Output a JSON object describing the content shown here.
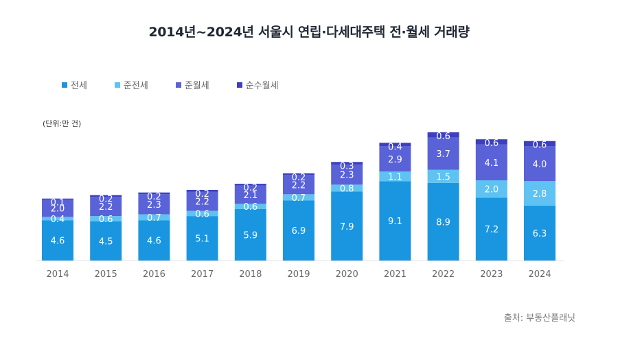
{
  "chart_data": {
    "type": "bar",
    "stacked": true,
    "title": "2014년~2024년 서울시 연립·다세대주택 전·월세 거래량",
    "unit_label": "(단위:만 건)",
    "source": "출처: 부동산플래닛",
    "xlabel": "",
    "ylabel": "",
    "ylim": [
      0,
      15
    ],
    "grid": false,
    "legend_position": "top-left",
    "categories": [
      "2014",
      "2015",
      "2016",
      "2017",
      "2018",
      "2019",
      "2020",
      "2021",
      "2022",
      "2023",
      "2024"
    ],
    "series": [
      {
        "name": "전세",
        "color": "#1a96e0",
        "values": [
          4.6,
          4.5,
          4.6,
          5.1,
          5.9,
          6.9,
          7.9,
          9.1,
          8.9,
          7.2,
          6.3
        ]
      },
      {
        "name": "준전세",
        "color": "#5ec2f2",
        "values": [
          0.4,
          0.6,
          0.7,
          0.6,
          0.6,
          0.7,
          0.8,
          1.1,
          1.5,
          2.0,
          2.8
        ]
      },
      {
        "name": "준월세",
        "color": "#5a62d8",
        "values": [
          2.0,
          2.2,
          2.3,
          2.2,
          2.1,
          2.2,
          2.3,
          2.9,
          3.7,
          4.1,
          4.0
        ]
      },
      {
        "name": "순수월세",
        "color": "#3d3fc0",
        "values": [
          0.1,
          0.2,
          0.2,
          0.2,
          0.2,
          0.2,
          0.3,
          0.4,
          0.6,
          0.6,
          0.6
        ]
      }
    ]
  }
}
